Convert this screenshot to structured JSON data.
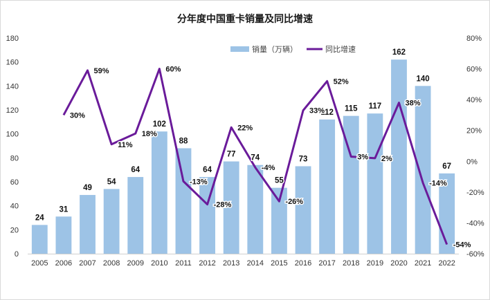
{
  "chart_data": {
    "type": "bar",
    "title": "分年度中国重卡销量及同比增速",
    "categories": [
      "2005",
      "2006",
      "2007",
      "2008",
      "2009",
      "2010",
      "2011",
      "2012",
      "2013",
      "2014",
      "2015",
      "2016",
      "2017",
      "2018",
      "2019",
      "2020",
      "2021",
      "2022"
    ],
    "series": [
      {
        "name": "销量（万辆）",
        "type": "bar",
        "axis": "left",
        "color": "#9dc3e6",
        "values": [
          24,
          31,
          49,
          54,
          64,
          102,
          88,
          64,
          77,
          74,
          55,
          73,
          112,
          115,
          117,
          162,
          140,
          67
        ],
        "labels": [
          "24",
          "31",
          "49",
          "54",
          "64",
          "102",
          "88",
          "64",
          "77",
          "74",
          "55",
          "73",
          "112",
          "115",
          "117",
          "162",
          "140",
          "67"
        ]
      },
      {
        "name": "同比增速",
        "type": "line",
        "axis": "right",
        "color": "#6a1b9a",
        "values": [
          null,
          30,
          59,
          11,
          18,
          60,
          -13,
          -28,
          22,
          -4,
          -26,
          33,
          52,
          3,
          2,
          38,
          -14,
          -54
        ],
        "labels": [
          null,
          "30%",
          "59%",
          "11%",
          "18%",
          "60%",
          "-13%",
          "-28%",
          "22%",
          "-4%",
          "-26%",
          "33%",
          "52%",
          "3%",
          "2%",
          "38%",
          "-14%",
          "-54%"
        ]
      }
    ],
    "y_left": {
      "min": 0,
      "max": 180,
      "step": 20,
      "ticks": [
        "0",
        "20",
        "40",
        "60",
        "80",
        "100",
        "120",
        "140",
        "160",
        "180"
      ]
    },
    "y_right": {
      "min": -60,
      "max": 80,
      "step": 20,
      "ticks": [
        "-60%",
        "-40%",
        "-20%",
        "0%",
        "20%",
        "40%",
        "60%",
        "80%"
      ]
    },
    "legend_position": "top-right",
    "grid": false
  }
}
